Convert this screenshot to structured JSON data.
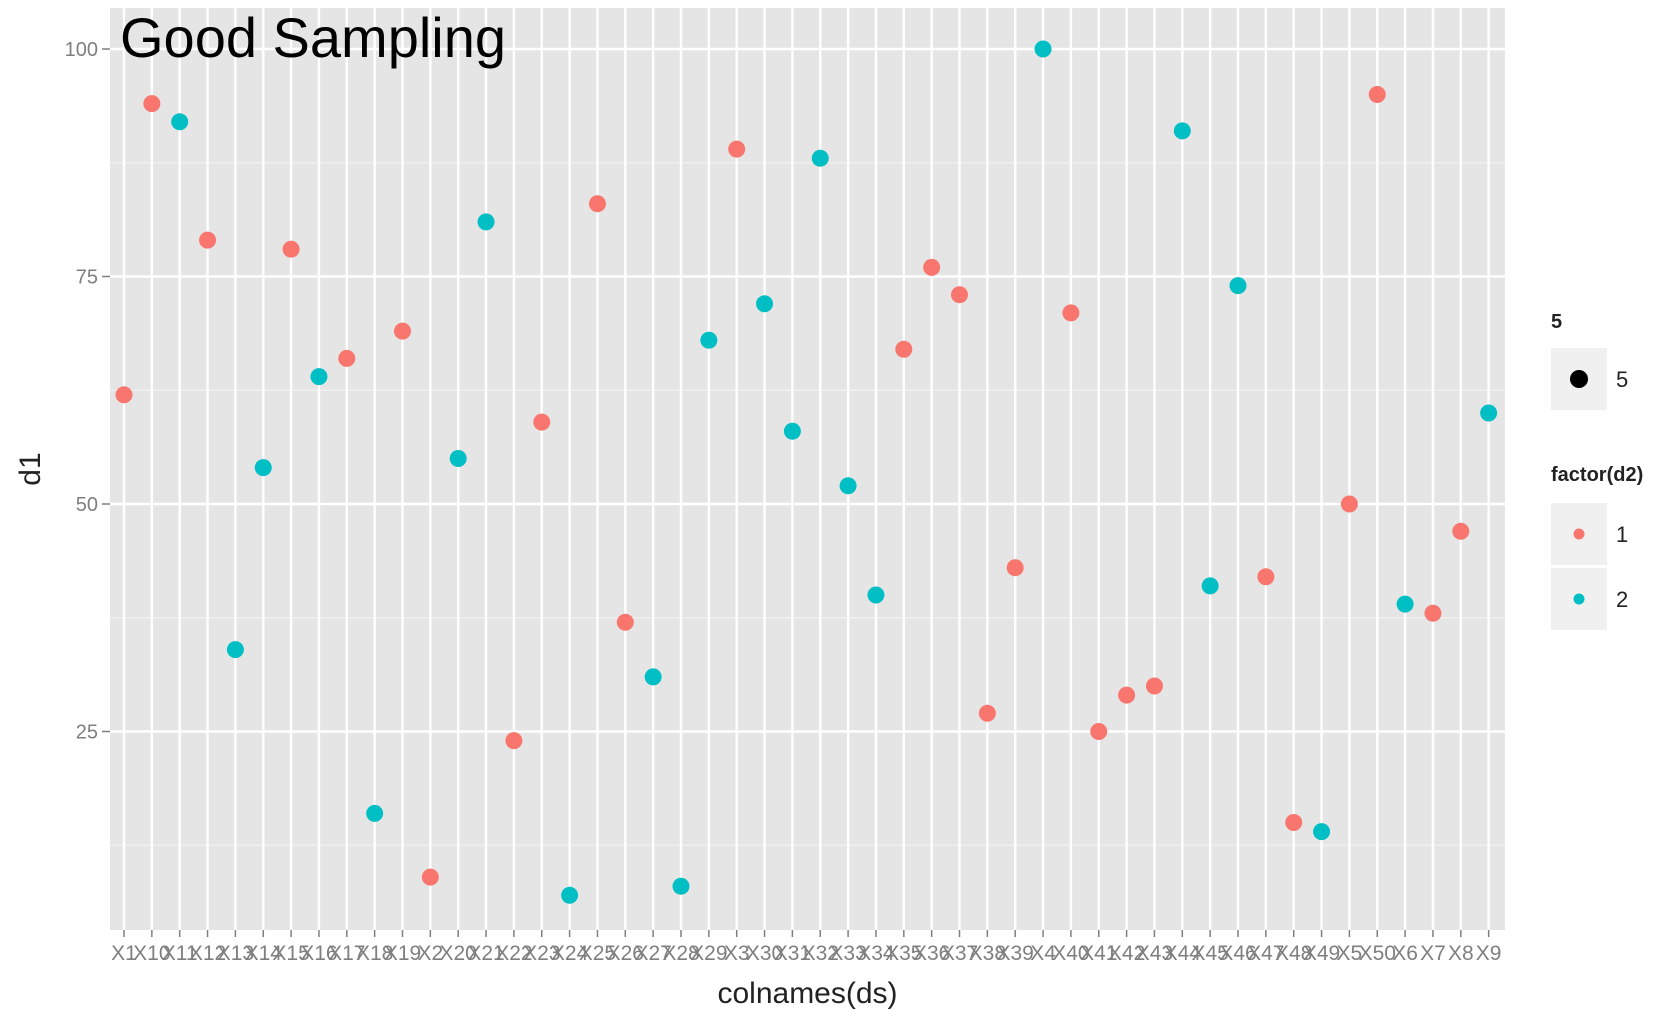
{
  "overlay": {
    "title": "Good Sampling"
  },
  "chart_data": {
    "type": "scatter",
    "xlabel": "colnames(ds)",
    "ylabel": "d1",
    "y_ticks": [
      25,
      50,
      75,
      100
    ],
    "categories": [
      "X1",
      "X10",
      "X11",
      "X12",
      "X13",
      "X14",
      "X15",
      "X16",
      "X17",
      "X18",
      "X19",
      "X2",
      "X20",
      "X21",
      "X22",
      "X23",
      "X24",
      "X25",
      "X26",
      "X27",
      "X28",
      "X29",
      "X3",
      "X30",
      "X31",
      "X32",
      "X33",
      "X34",
      "X35",
      "X36",
      "X37",
      "X38",
      "X39",
      "X4",
      "X40",
      "X41",
      "X42",
      "X43",
      "X44",
      "X45",
      "X46",
      "X47",
      "X48",
      "X49",
      "X5",
      "X50",
      "X6",
      "X7",
      "X8",
      "X9"
    ],
    "values": [
      62,
      94,
      92,
      79,
      34,
      54,
      78,
      64,
      66,
      16,
      69,
      9,
      55,
      81,
      24,
      59,
      7,
      83,
      37,
      31,
      8,
      68,
      89,
      72,
      58,
      88,
      52,
      40,
      67,
      76,
      73,
      27,
      43,
      100,
      71,
      25,
      29,
      30,
      91,
      41,
      74,
      42,
      15,
      14,
      50,
      95,
      39,
      38,
      47,
      60
    ],
    "groups": [
      1,
      1,
      2,
      1,
      2,
      2,
      1,
      2,
      1,
      2,
      1,
      1,
      2,
      2,
      1,
      1,
      2,
      1,
      1,
      2,
      2,
      2,
      1,
      2,
      2,
      2,
      2,
      2,
      1,
      1,
      1,
      1,
      1,
      2,
      1,
      1,
      1,
      1,
      2,
      2,
      2,
      1,
      1,
      2,
      1,
      1,
      2,
      1,
      1,
      2
    ],
    "colors": {
      "1": "#f8766d",
      "2": "#00bfc4",
      "panel": "#e5e5e5",
      "grid": "#ffffff"
    },
    "grid": true,
    "legend": {
      "placement": "right",
      "size_title": "5",
      "size_label": "5",
      "color_title": "factor(d2)",
      "color_labels": [
        "1",
        "2"
      ]
    }
  }
}
